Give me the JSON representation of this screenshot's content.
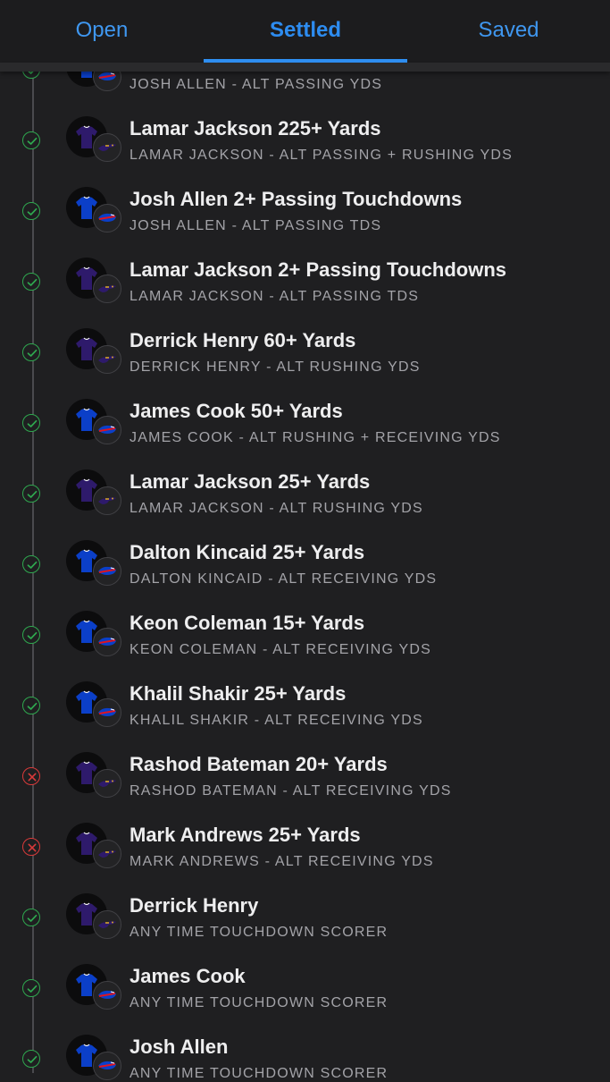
{
  "tabs": [
    {
      "label": "Open",
      "active": false
    },
    {
      "label": "Settled",
      "active": true
    },
    {
      "label": "Saved",
      "active": false
    }
  ],
  "colors": {
    "accent": "#2f8ff2",
    "win": "#2fa84f",
    "loss": "#d93a3a",
    "ravens": "#2e1a6b",
    "bills": "#0b3fc8"
  },
  "bets": [
    {
      "title": "",
      "subtitle": "JOSH ALLEN - ALT PASSING YDS",
      "team": "bills",
      "result": "win"
    },
    {
      "title": "Lamar Jackson 225+ Yards",
      "subtitle": "LAMAR JACKSON - ALT PASSING + RUSHING YDS",
      "team": "ravens",
      "result": "win"
    },
    {
      "title": "Josh Allen 2+ Passing Touchdowns",
      "subtitle": "JOSH ALLEN - ALT PASSING TDS",
      "team": "bills",
      "result": "win"
    },
    {
      "title": "Lamar Jackson 2+ Passing Touchdowns",
      "subtitle": "LAMAR JACKSON - ALT PASSING TDS",
      "team": "ravens",
      "result": "win"
    },
    {
      "title": "Derrick Henry 60+ Yards",
      "subtitle": "DERRICK HENRY - ALT RUSHING YDS",
      "team": "ravens",
      "result": "win"
    },
    {
      "title": "James Cook 50+ Yards",
      "subtitle": "JAMES COOK - ALT RUSHING + RECEIVING YDS",
      "team": "bills",
      "result": "win"
    },
    {
      "title": "Lamar Jackson 25+ Yards",
      "subtitle": "LAMAR JACKSON - ALT RUSHING YDS",
      "team": "ravens",
      "result": "win"
    },
    {
      "title": "Dalton Kincaid 25+ Yards",
      "subtitle": "DALTON KINCAID - ALT RECEIVING YDS",
      "team": "bills",
      "result": "win"
    },
    {
      "title": "Keon Coleman 15+ Yards",
      "subtitle": "KEON COLEMAN - ALT RECEIVING YDS",
      "team": "bills",
      "result": "win"
    },
    {
      "title": "Khalil Shakir 25+ Yards",
      "subtitle": "KHALIL SHAKIR - ALT RECEIVING YDS",
      "team": "bills",
      "result": "win"
    },
    {
      "title": "Rashod Bateman 20+ Yards",
      "subtitle": "RASHOD BATEMAN - ALT RECEIVING YDS",
      "team": "ravens",
      "result": "loss"
    },
    {
      "title": "Mark Andrews 25+ Yards",
      "subtitle": "MARK ANDREWS - ALT RECEIVING YDS",
      "team": "ravens",
      "result": "loss"
    },
    {
      "title": "Derrick Henry",
      "subtitle": "ANY TIME TOUCHDOWN SCORER",
      "team": "ravens",
      "result": "win"
    },
    {
      "title": "James Cook",
      "subtitle": "ANY TIME TOUCHDOWN SCORER",
      "team": "bills",
      "result": "win"
    },
    {
      "title": "Josh Allen",
      "subtitle": "ANY TIME TOUCHDOWN SCORER",
      "team": "bills",
      "result": "win"
    }
  ]
}
